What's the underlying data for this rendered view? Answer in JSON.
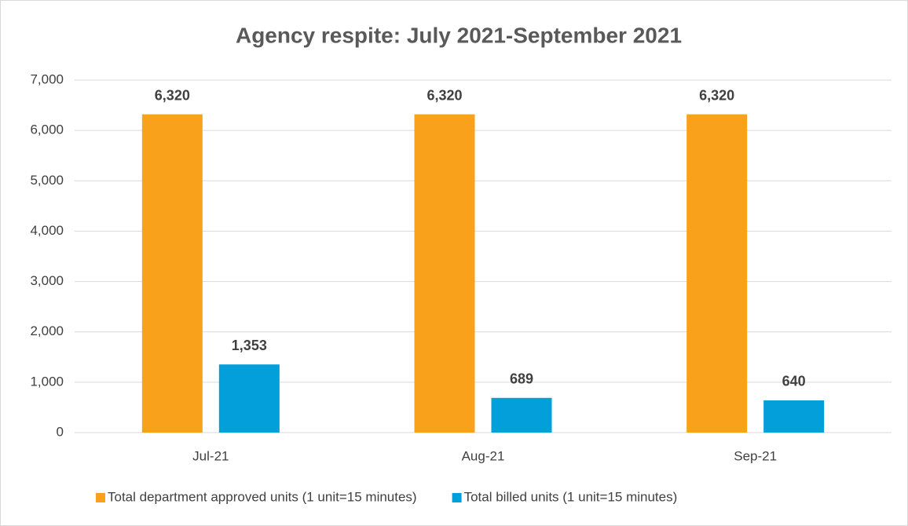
{
  "chart_data": {
    "type": "bar",
    "title": "Agency respite: July 2021-September 2021",
    "categories": [
      "Jul-21",
      "Aug-21",
      "Sep-21"
    ],
    "series": [
      {
        "name": "Total department approved units (1 unit=15 minutes)",
        "color": "#f9a11b",
        "values": [
          6320,
          6320,
          6320
        ],
        "value_labels": [
          "6,320",
          "6,320",
          "6,320"
        ]
      },
      {
        "name": "Total billed units (1 unit=15 minutes)",
        "color": "#039fdb",
        "values": [
          1353,
          689,
          640
        ],
        "value_labels": [
          "1,353",
          "689",
          "640"
        ]
      }
    ],
    "ylim": [
      0,
      7000
    ],
    "yticks": [
      0,
      {
        "value": 1000,
        "label": "1,000"
      },
      {
        "value": 2000,
        "label": "2,000"
      },
      {
        "value": 3000,
        "label": "3,000"
      },
      {
        "value": 4000,
        "label": "4,000"
      },
      {
        "value": 5000,
        "label": "5,000"
      },
      {
        "value": 6000,
        "label": "6,000"
      },
      {
        "value": 7000,
        "label": "7,000"
      }
    ],
    "grid": true,
    "legend": "bottom"
  }
}
